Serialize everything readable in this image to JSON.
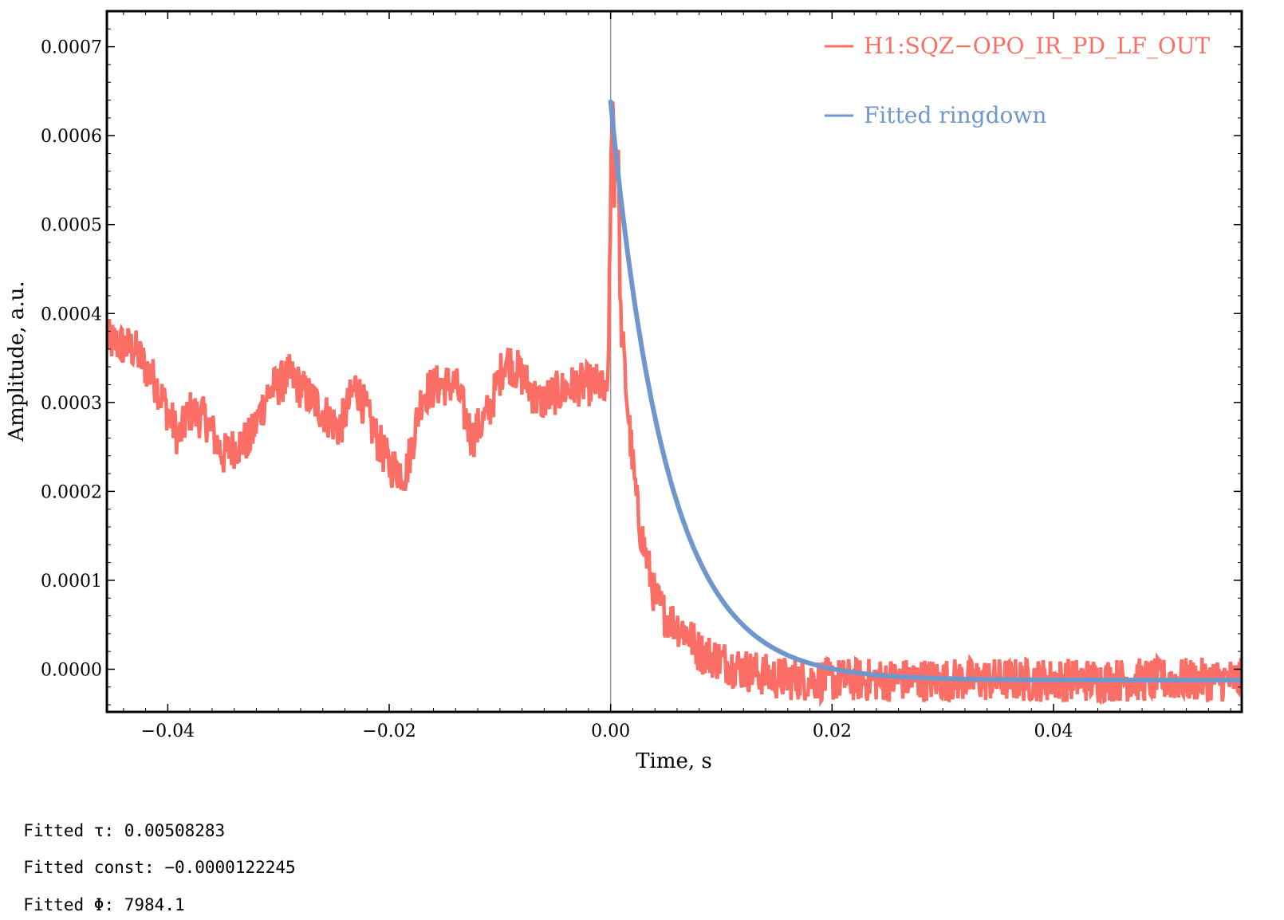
{
  "chart_data": {
    "type": "line",
    "title": "",
    "xlabel": "Time, s",
    "ylabel": "Amplitude, a.u.",
    "xlim": [
      -0.0455,
      0.057
    ],
    "ylim": [
      -4.8e-05,
      0.00074
    ],
    "x_ticks": [
      -0.04,
      -0.02,
      0.0,
      0.02,
      0.04
    ],
    "x_tick_labels": [
      "−0.04",
      "−0.02",
      "0.00",
      "0.02",
      "0.04"
    ],
    "y_ticks": [
      0.0,
      0.0001,
      0.0002,
      0.0003,
      0.0004,
      0.0005,
      0.0006,
      0.0007
    ],
    "y_tick_labels": [
      "0.0000",
      "0.0001",
      "0.0002",
      "0.0003",
      "0.0004",
      "0.0005",
      "0.0006",
      "0.0007"
    ],
    "grid": false,
    "vertical_marker_x": 0.0,
    "legend_position": "top-right",
    "series": [
      {
        "name": "H1:SQZ−OPO_IR_PD_LF_OUT",
        "color": "#fa6e66",
        "kind": "noisy-signal",
        "x": [
          -0.0455,
          -0.043,
          -0.041,
          -0.039,
          -0.038,
          -0.0365,
          -0.035,
          -0.034,
          -0.0325,
          -0.031,
          -0.029,
          -0.0275,
          -0.026,
          -0.0245,
          -0.023,
          -0.0215,
          -0.02,
          -0.0185,
          -0.017,
          -0.0155,
          -0.014,
          -0.0125,
          -0.011,
          -0.0095,
          -0.008,
          -0.0065,
          -0.005,
          -0.003,
          -0.001,
          -0.0003,
          0.0,
          0.0005,
          0.001,
          0.0015,
          0.002,
          0.0025,
          0.003,
          0.0035,
          0.004,
          0.005,
          0.006,
          0.007,
          0.008,
          0.01,
          0.012,
          0.015,
          0.02,
          0.03,
          0.04,
          0.05,
          0.057
        ],
        "y": [
          0.00037,
          0.00036,
          0.00032,
          0.00026,
          0.00029,
          0.00028,
          0.00024,
          0.00025,
          0.00026,
          0.00031,
          0.00033,
          0.00031,
          0.00029,
          0.00027,
          0.00032,
          0.00027,
          0.00023,
          0.00022,
          0.00031,
          0.00032,
          0.00032,
          0.00026,
          0.00029,
          0.00035,
          0.00033,
          0.0003,
          0.00031,
          0.00032,
          0.00032,
          0.0003,
          0.0005,
          0.00047,
          0.00038,
          0.0003,
          0.00023,
          0.00017,
          0.00014,
          0.00011,
          8e-05,
          6e-05,
          5e-05,
          4e-05,
          2e-05,
          1e-05,
          0.0,
          -1e-05,
          -1.2e-05,
          -1.2e-05,
          -1.2e-05,
          -1.2e-05,
          -1.2e-05
        ]
      },
      {
        "name": "Fitted ringdown",
        "color": "#6f97cc",
        "kind": "fit",
        "tau": 0.00508283,
        "const": -1.22245e-05,
        "x_start": 0.0,
        "peak": 0.000638
      }
    ]
  },
  "readouts": [
    {
      "label": "Fitted τ:",
      "value": "0.00508283"
    },
    {
      "label": "Fitted const:",
      "value": "−0.0000122245"
    },
    {
      "label": "Fitted Φ:",
      "value": "7984.1"
    }
  ]
}
